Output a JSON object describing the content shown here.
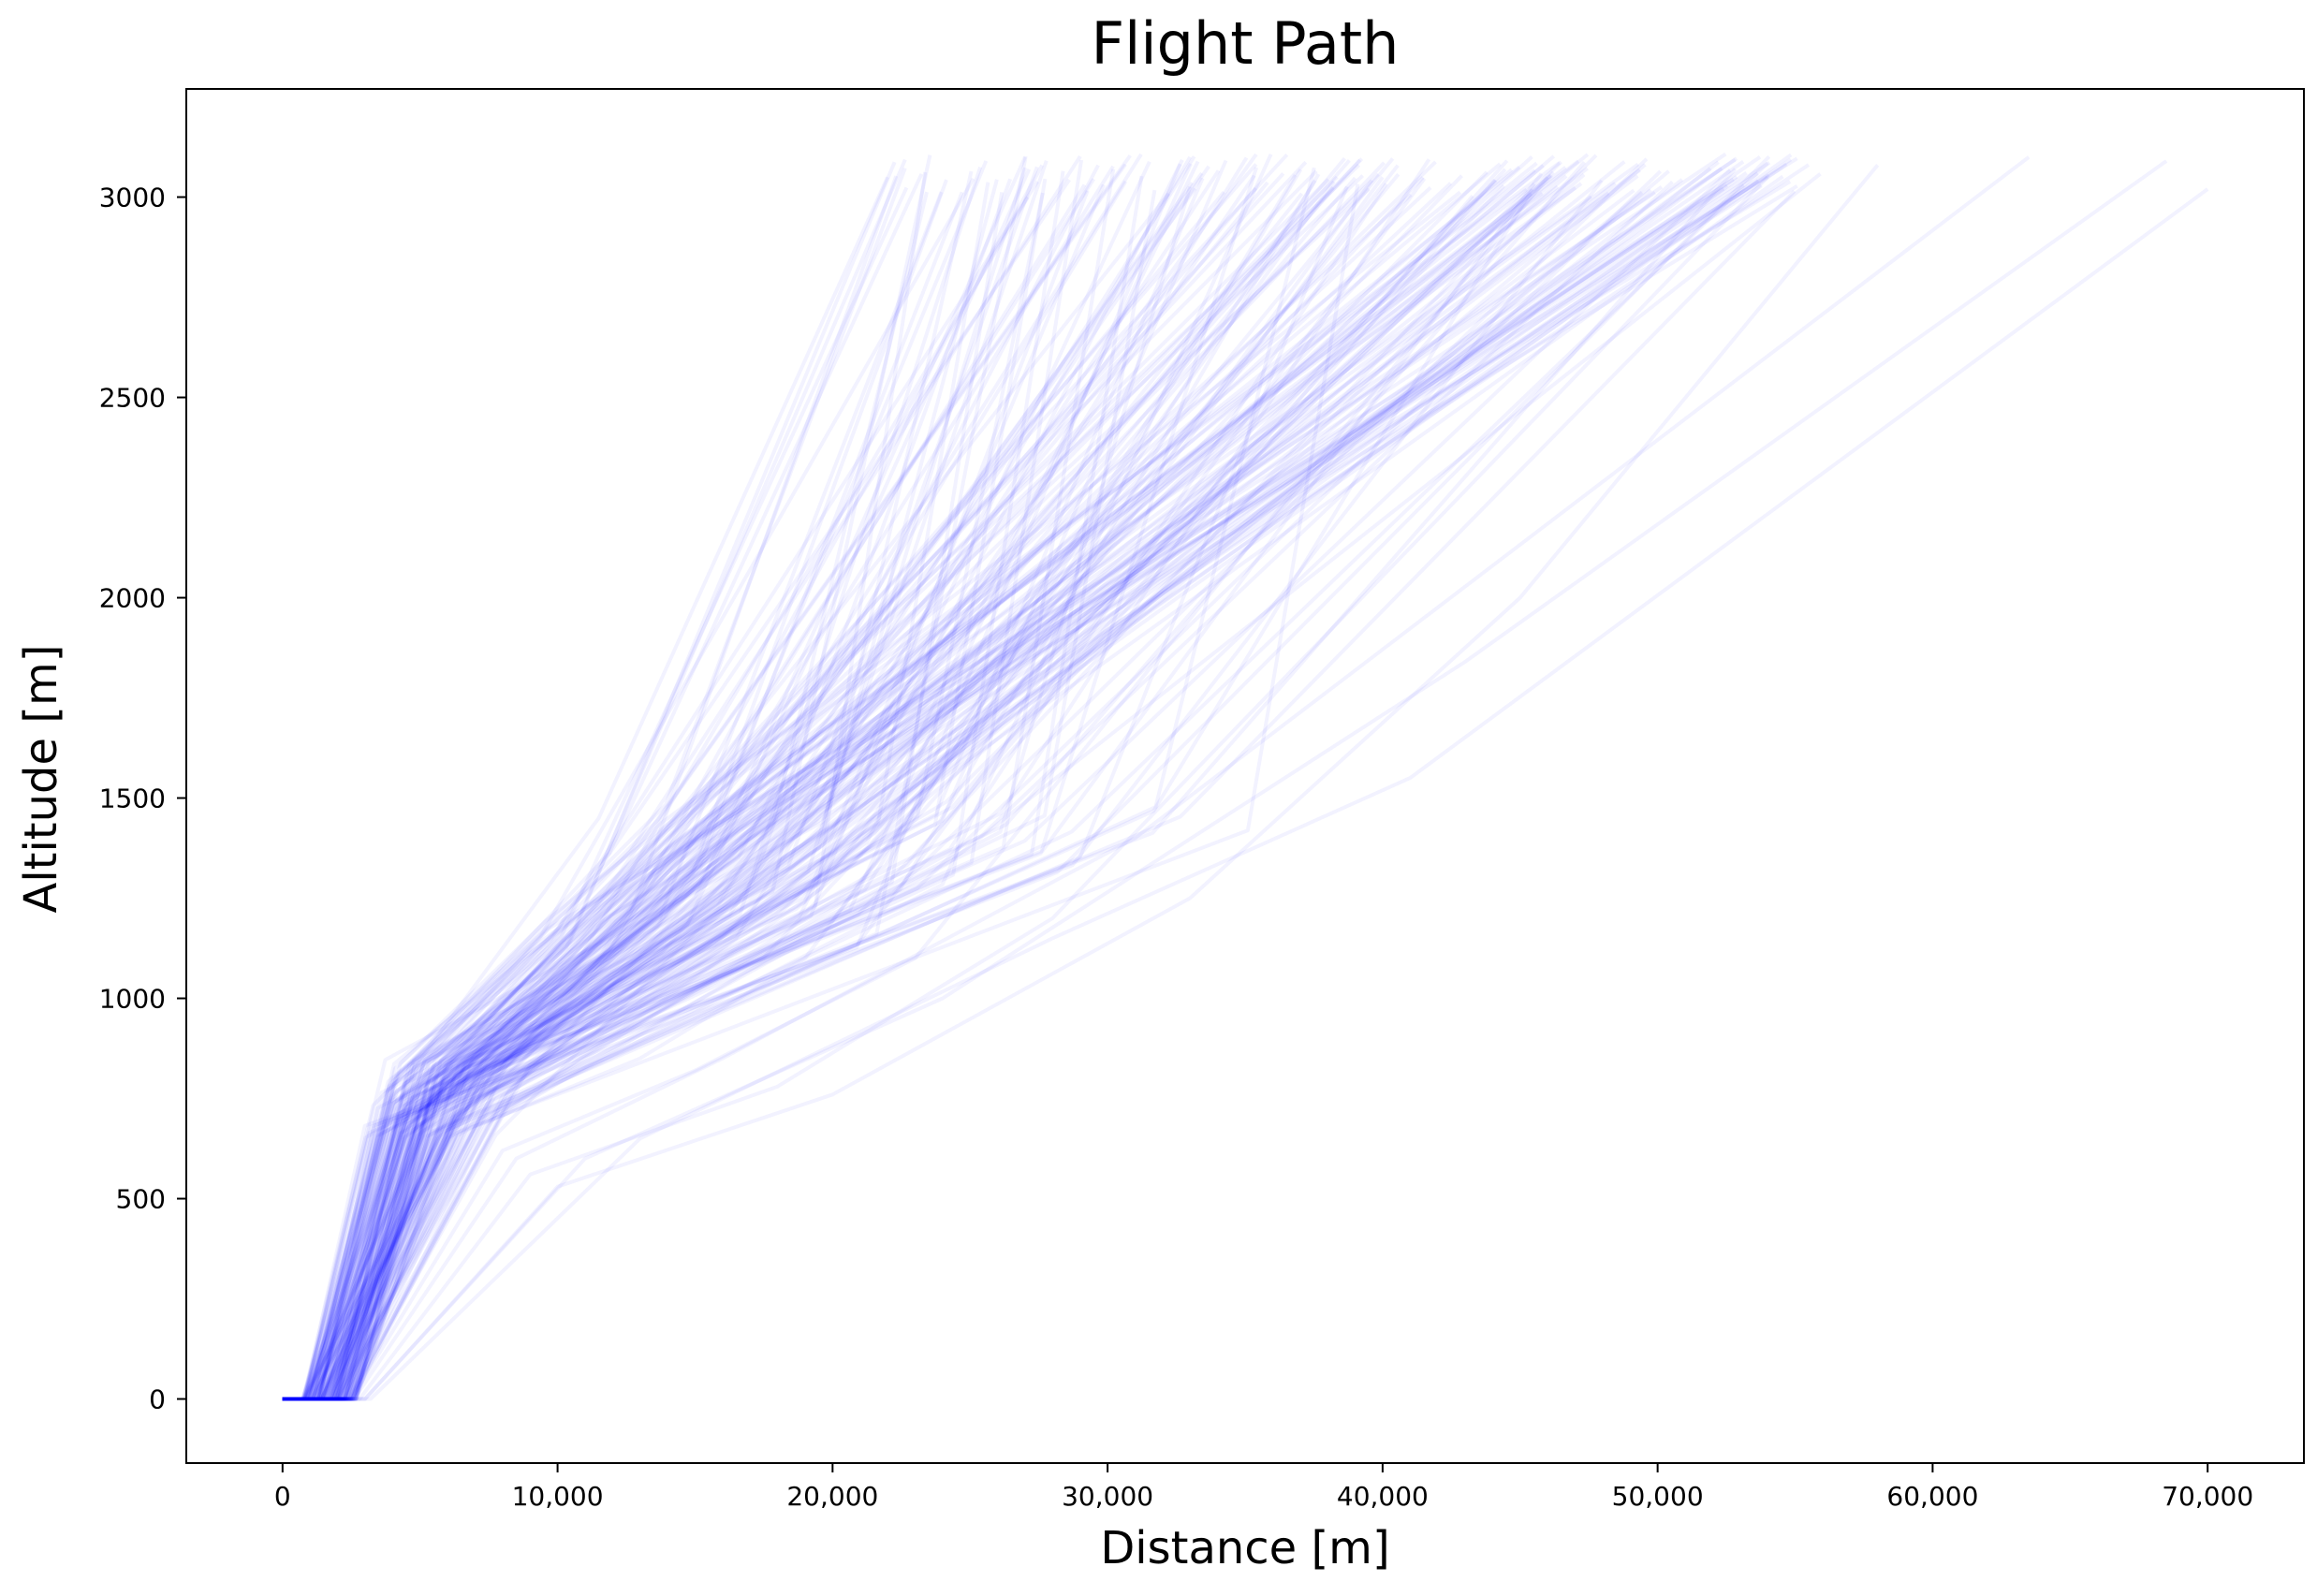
{
  "chart_data": {
    "type": "line",
    "title": "Flight Path",
    "xlabel": "Distance [m]",
    "ylabel": "Altitude [m]",
    "xlim": [
      -3500,
      73500
    ],
    "ylim": [
      -160,
      3270
    ],
    "x_ticks": [
      0,
      10000,
      20000,
      30000,
      40000,
      50000,
      60000,
      70000
    ],
    "x_tick_labels": [
      "0",
      "10,000",
      "20,000",
      "30,000",
      "40,000",
      "50,000",
      "60,000",
      "70,000"
    ],
    "y_ticks": [
      0,
      500,
      1000,
      1500,
      2000,
      2500,
      3000
    ],
    "y_tick_labels": [
      "0",
      "500",
      "1000",
      "1500",
      "2000",
      "2500",
      "3000"
    ],
    "grid": false,
    "line_color": "#0000ff",
    "line_alpha": 0.05,
    "series_count": 200,
    "series": [
      {
        "x": [
          0,
          1500,
          4500,
          11500,
          22000
        ],
        "y": [
          0,
          0,
          800,
          1450,
          3050
        ]
      },
      {
        "x": [
          0,
          1800,
          5200,
          9000,
          15000,
          27000
        ],
        "y": [
          0,
          0,
          760,
          950,
          1250,
          3100
        ]
      },
      {
        "x": [
          0,
          2000,
          6000,
          11000,
          16500,
          33000
        ],
        "y": [
          0,
          0,
          720,
          880,
          1150,
          3100
        ]
      },
      {
        "x": [
          0,
          2200,
          7000,
          13000,
          19000,
          40000
        ],
        "y": [
          0,
          0,
          680,
          850,
          1100,
          3050
        ]
      },
      {
        "x": [
          0,
          2500,
          8000,
          15000,
          23000,
          46000
        ],
        "y": [
          0,
          0,
          620,
          820,
          1100,
          3050
        ]
      },
      {
        "x": [
          0,
          2800,
          9000,
          18000,
          28000,
          54000
        ],
        "y": [
          0,
          0,
          560,
          780,
          1200,
          3050
        ]
      },
      {
        "x": [
          0,
          3000,
          10000,
          20000,
          33000,
          45000,
          58000
        ],
        "y": [
          0,
          0,
          530,
          760,
          1250,
          2000,
          3080
        ]
      },
      {
        "x": [
          0,
          3200,
          13000,
          28000,
          41000,
          70000
        ],
        "y": [
          0,
          0,
          650,
          1150,
          1550,
          3020
        ]
      },
      {
        "x": [
          0,
          3000,
          11000,
          24000,
          43000,
          68500
        ],
        "y": [
          0,
          0,
          600,
          1000,
          1840,
          3090
        ]
      },
      {
        "x": [
          0,
          2600,
          8500,
          16000,
          31000,
          63500
        ],
        "y": [
          0,
          0,
          600,
          850,
          1400,
          3100
        ]
      }
    ]
  }
}
